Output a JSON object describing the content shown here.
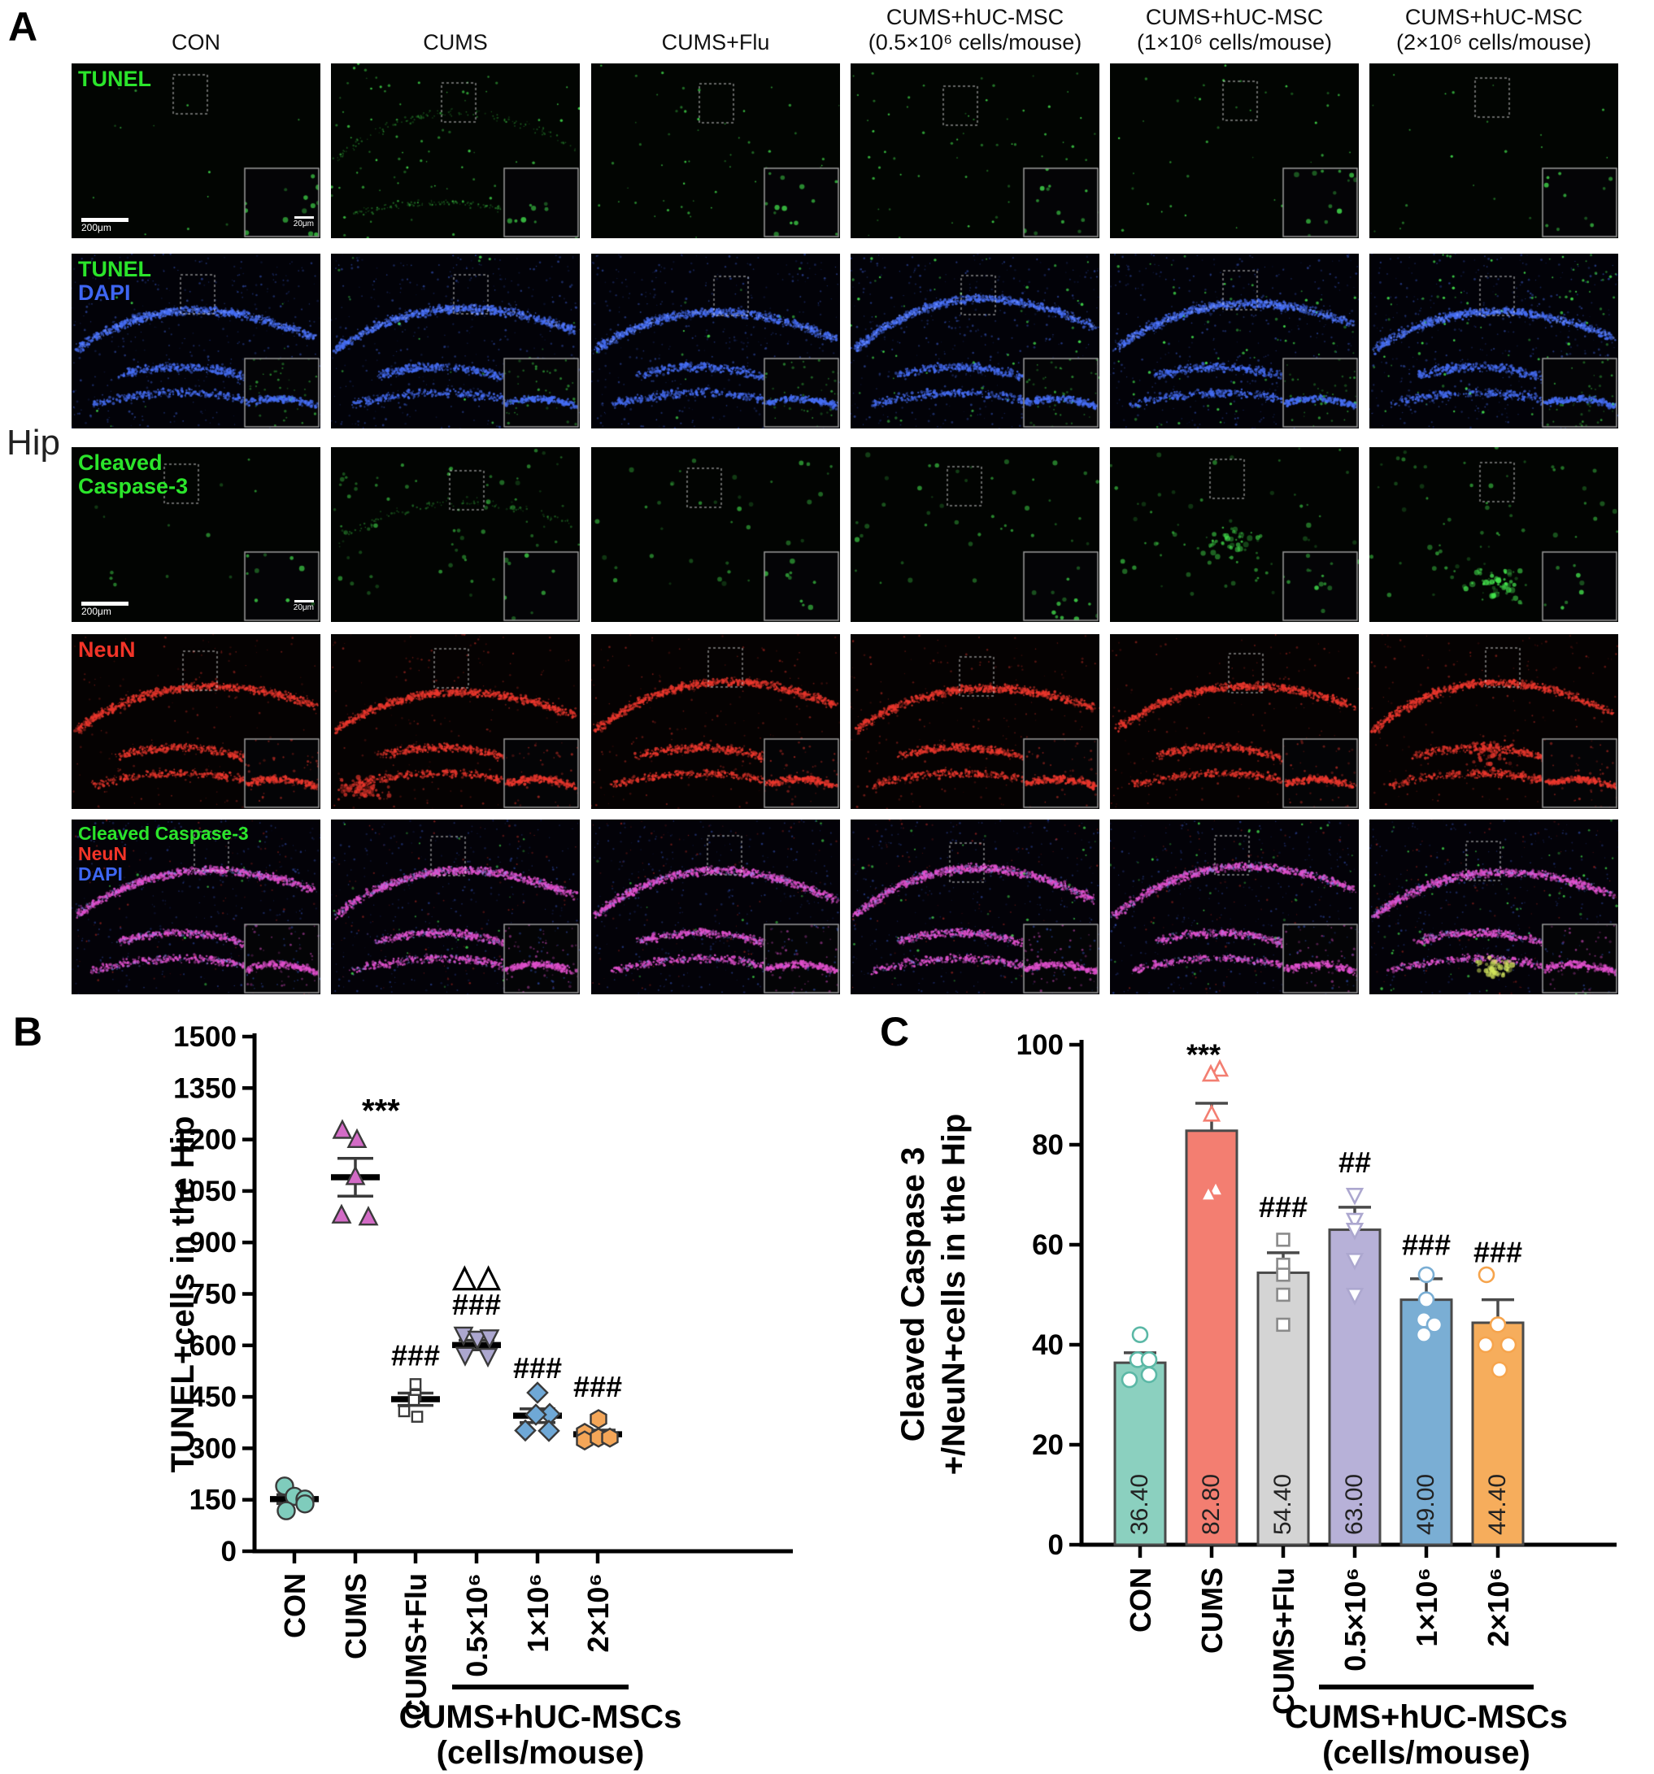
{
  "figure": {
    "panel_a_label": "A",
    "panel_b_label": "B",
    "panel_c_label": "C",
    "region_label": "Hip"
  },
  "panel_a": {
    "column_headers": [
      {
        "line1": "",
        "line2": "CON"
      },
      {
        "line1": "",
        "line2": "CUMS"
      },
      {
        "line1": "",
        "line2": "CUMS+Flu"
      },
      {
        "line1": "CUMS+hUC-MSC",
        "line2": "(0.5×10⁶ cells/mouse)"
      },
      {
        "line1": "CUMS+hUC-MSC",
        "line2": "(1×10⁶ cells/mouse)"
      },
      {
        "line1": "CUMS+hUC-MSC",
        "line2": "(2×10⁶ cells/mouse)"
      }
    ],
    "row_labels": [
      {
        "lines": [
          {
            "text": "TUNEL",
            "color": "#2be52b"
          }
        ]
      },
      {
        "lines": [
          {
            "text": "TUNEL",
            "color": "#2be52b"
          },
          {
            "text": "DAPI",
            "color": "#3e66f2"
          }
        ]
      },
      {
        "lines": [
          {
            "text": "Cleaved",
            "color": "#2be52b"
          },
          {
            "text": "Caspase-3",
            "color": "#2be52b"
          }
        ]
      },
      {
        "lines": [
          {
            "text": "NeuN",
            "color": "#f23428"
          }
        ]
      },
      {
        "lines": [
          {
            "text": "Cleaved Caspase-3",
            "color": "#2be52b"
          },
          {
            "text": "NeuN",
            "color": "#f23428"
          },
          {
            "text": "DAPI",
            "color": "#3e66f2"
          }
        ]
      }
    ],
    "scale_bar_main": "200μm",
    "scale_bar_inset": "20μm"
  },
  "chart_data": [
    {
      "id": "panel-b",
      "type": "scatter",
      "ylabel": "TUNEL+cells in the Hip",
      "ylim": [
        0,
        1500
      ],
      "ytick_step": 150,
      "categories": [
        "CON",
        "CUMS",
        "CUMS+Flu",
        "0.5×10⁶",
        "1×10⁶",
        "2×10⁶"
      ],
      "group_note": {
        "label": "CUMS+hUC-MSCs",
        "sublabel": "(cells/mouse)",
        "span_start": 3,
        "span_end": 5
      },
      "series": [
        {
          "name": "CON",
          "marker": "circle",
          "color": "#7fccbc",
          "points": [
            [
              -12,
              190
            ],
            [
              0,
              160
            ],
            [
              13,
              152
            ],
            [
              13,
              138
            ],
            [
              -10,
              118
            ]
          ],
          "mean": 152,
          "sem": 13,
          "sig": "",
          "sig2": ""
        },
        {
          "name": "CUMS",
          "marker": "triangle",
          "color": "#d36bc6",
          "points": [
            [
              -16,
              1225
            ],
            [
              2,
              1198
            ],
            [
              0,
              1090
            ],
            [
              -17,
              978
            ],
            [
              16,
              972
            ]
          ],
          "mean": 1090,
          "sem": 55,
          "sig": "***",
          "sig2": ""
        },
        {
          "name": "CUMS+Flu",
          "marker": "square",
          "color": "#ffffff",
          "points": [
            [
              0,
              487
            ],
            [
              0,
              455
            ],
            [
              -2,
              441
            ],
            [
              -14,
              408
            ],
            [
              2,
              392
            ]
          ],
          "mean": 443,
          "sem": 18,
          "sig": "###",
          "sig2": ""
        },
        {
          "name": "0.5×10⁶",
          "marker": "triangle-down",
          "color": "#aca7cf",
          "points": [
            [
              -16,
              632
            ],
            [
              1,
              620
            ],
            [
              16,
              624
            ],
            [
              -14,
              573
            ],
            [
              14,
              570
            ]
          ],
          "mean": 601,
          "sem": 14,
          "sig": "###",
          "sig2": "△△"
        },
        {
          "name": "1×10⁶",
          "marker": "diamond",
          "color": "#6fa8d6",
          "points": [
            [
              0,
              462
            ],
            [
              15,
              400
            ],
            [
              -2,
              398
            ],
            [
              -15,
              352
            ],
            [
              14,
              351
            ]
          ],
          "mean": 395,
          "sem": 20,
          "sig": "###",
          "sig2": ""
        },
        {
          "name": "2×10⁶",
          "marker": "hexagon",
          "color": "#f4a658",
          "points": [
            [
              1,
              385
            ],
            [
              -16,
              345
            ],
            [
              -16,
              323
            ],
            [
              1,
              331
            ],
            [
              15,
              331
            ]
          ],
          "mean": 341,
          "sem": 12,
          "sig": "###",
          "sig2": ""
        }
      ],
      "sig_y": [
        0,
        1252,
        542,
        690,
        505,
        450
      ],
      "sig2_y": [
        0,
        0,
        0,
        772,
        0,
        0
      ]
    },
    {
      "id": "panel-c",
      "type": "bar",
      "ylabel_lines": [
        "Cleaved Caspase 3",
        "+/NeuN+cells in the Hip"
      ],
      "ylim": [
        0,
        100
      ],
      "ytick_step": 20,
      "categories": [
        "CON",
        "CUMS",
        "CUMS+Flu",
        "0.5×10⁶",
        "1×10⁶",
        "2×10⁶"
      ],
      "group_note": {
        "label": "CUMS+hUC-MSCs",
        "sublabel": "(cells/mouse)",
        "span_start": 3,
        "span_end": 5
      },
      "values": [
        36.4,
        82.8,
        54.4,
        63.0,
        49.0,
        44.4
      ],
      "value_labels": [
        "36.40",
        "82.80",
        "54.40",
        "63.00",
        "49.00",
        "44.40"
      ],
      "sem": [
        2.0,
        5.5,
        4.0,
        4.5,
        4.2,
        4.6
      ],
      "bar_colors": [
        "#8bd0bf",
        "#f37e71",
        "#d4d4d4",
        "#b7b1d8",
        "#7aaed4",
        "#f6ad5c"
      ],
      "marker_shapes": [
        "circle",
        "triangle",
        "square",
        "triangle-down",
        "circle",
        "circle"
      ],
      "marker_colors": [
        "#5bb8a6",
        "#f37e71",
        "#8a8a8a",
        "#aca7cf",
        "#7aaed4",
        "#f6a44c"
      ],
      "points": [
        [
          [
            0,
            42
          ],
          [
            -3,
            37
          ],
          [
            11,
            37
          ],
          [
            -13,
            33
          ],
          [
            11,
            34
          ]
        ],
        [
          [
            10,
            95
          ],
          [
            -1,
            94
          ],
          [
            0,
            86
          ],
          [
            5,
            71
          ],
          [
            -4,
            70
          ]
        ],
        [
          [
            0,
            61
          ],
          [
            0,
            56
          ],
          [
            0,
            50
          ],
          [
            0,
            44
          ],
          [
            0,
            54
          ]
        ],
        [
          [
            0,
            70
          ],
          [
            0,
            65
          ],
          [
            0,
            57
          ],
          [
            0,
            50
          ],
          [
            0,
            63
          ]
        ],
        [
          [
            0,
            54
          ],
          [
            -3,
            45
          ],
          [
            -3,
            42
          ],
          [
            10,
            44
          ],
          [
            0,
            49
          ]
        ],
        [
          [
            -14,
            54
          ],
          [
            -15,
            40
          ],
          [
            2,
            35
          ],
          [
            13,
            40
          ],
          [
            0,
            44
          ]
        ]
      ],
      "annotations": [
        "",
        "***",
        "###",
        "##",
        "###",
        "###"
      ],
      "anno_v": [
        0,
        96,
        65.5,
        74.5,
        58,
        56.5
      ]
    }
  ]
}
